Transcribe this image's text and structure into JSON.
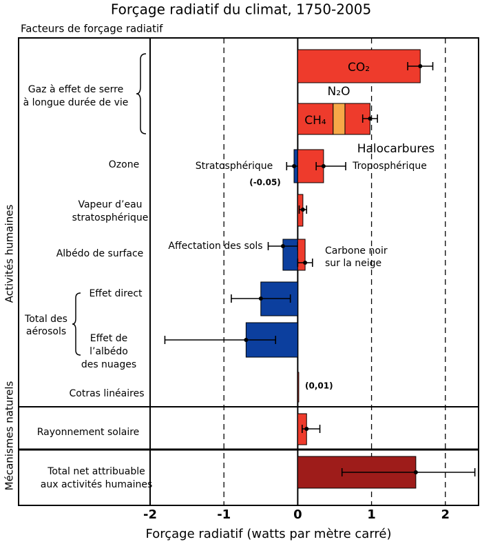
{
  "chart_data": {
    "type": "bar",
    "title": "Forçage radiatif du climat, 1750-2005",
    "header": "Facteurs de forçage radiatif",
    "xlabel": "Forçage radiatif (watts par mètre carré)",
    "xlim": [
      -2,
      2.45
    ],
    "xticks": [
      -2,
      -1,
      0,
      1,
      2
    ],
    "grid": true,
    "side_labels": [
      "Activités humaines",
      "Mécanismes naturels"
    ],
    "groups": [
      {
        "label": [
          "Gaz à effet de serre",
          "à longue durée de vie"
        ]
      },
      {
        "label": [
          "Total des",
          "aérosols"
        ]
      }
    ],
    "rows": [
      {
        "bars": [
          {
            "name": "CO₂",
            "value": 1.66,
            "low": 1.49,
            "high": 1.83,
            "color": "#ee3b2c"
          }
        ]
      },
      {
        "stacked": true,
        "low": 0.88,
        "high": 1.08,
        "bars": [
          {
            "name": "CH₄",
            "value": 0.48,
            "color": "#ee3b2c"
          },
          {
            "name": "N₂O",
            "value": 0.16,
            "color": "#f7a848"
          },
          {
            "name": "Halocarbures",
            "value": 0.34,
            "color": "#ee3b2c"
          }
        ]
      },
      {
        "label": [
          "Ozone"
        ],
        "bars": [
          {
            "name": "Stratosphérique",
            "value": -0.05,
            "value_label": "(-0.05)",
            "low": -0.15,
            "high": 0.05,
            "color": "#0c3f9e"
          },
          {
            "name": "Troposphérique",
            "value": 0.35,
            "low": 0.25,
            "high": 0.65,
            "color": "#ee3b2c"
          }
        ]
      },
      {
        "label": [
          "Vapeur d’eau",
          "stratosphérique"
        ],
        "bars": [
          {
            "value": 0.07,
            "low": 0.02,
            "high": 0.12,
            "color": "#ee3b2c"
          }
        ]
      },
      {
        "label": [
          "Albédo de surface"
        ],
        "bars": [
          {
            "name": [
              "Affectation des sols"
            ],
            "value": -0.2,
            "low": -0.4,
            "high": 0.0,
            "color": "#0c3f9e"
          },
          {
            "name": [
              "Carbone noir",
              "sur la neige"
            ],
            "value": 0.1,
            "low": 0.0,
            "high": 0.2,
            "color": "#ee3b2c"
          }
        ]
      },
      {
        "label": [
          "Effet direct"
        ],
        "bars": [
          {
            "value": -0.5,
            "low": -0.9,
            "high": -0.1,
            "color": "#0c3f9e"
          }
        ]
      },
      {
        "label": [
          "Effet de",
          "l’albédo",
          "des nuages"
        ],
        "bars": [
          {
            "value": -0.7,
            "low": -1.8,
            "high": -0.3,
            "color": "#0c3f9e"
          }
        ]
      },
      {
        "label": [
          "Cotras linéaires"
        ],
        "bars": [
          {
            "value": 0.01,
            "value_label": "(0,01)",
            "color": "#ee3b2c"
          }
        ]
      },
      {
        "label": [
          "Rayonnement solaire"
        ],
        "bars": [
          {
            "value": 0.12,
            "low": 0.06,
            "high": 0.3,
            "color": "#ee3b2c"
          }
        ]
      },
      {
        "label": [
          "Total net attribuable",
          "aux activités humaines"
        ],
        "bars": [
          {
            "value": 1.6,
            "low": 0.6,
            "high": 2.4,
            "color": "#9e1c1a"
          }
        ]
      }
    ]
  }
}
